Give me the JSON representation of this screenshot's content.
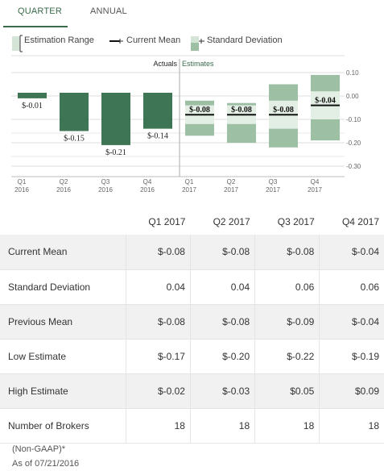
{
  "tabs": {
    "quarter": "QUARTER",
    "annual": "ANNUAL"
  },
  "legend": {
    "range": "Estimation Range",
    "mean": "Current Mean",
    "stddev": "Standard Deviation"
  },
  "colors": {
    "actual": "#3e7554",
    "estimate": "#9dc0a4",
    "accent": "#3a6b4a"
  },
  "chart_data": {
    "type": "bar",
    "section_labels": {
      "actuals": "Actuals",
      "estimates": "Estimates"
    },
    "categories": [
      "Q1\n2016",
      "Q2\n2016",
      "Q3\n2016",
      "Q4\n2016",
      "Q1\n2017",
      "Q2\n2017",
      "Q3\n2017",
      "Q4\n2017"
    ],
    "y_ticks": [
      "0.10",
      "0.00",
      "-0.10",
      "-0.20",
      "-0.30"
    ],
    "ylim": [
      -0.33,
      0.11
    ],
    "actuals": [
      {
        "label": "$-0.01",
        "value": -0.01
      },
      {
        "label": "$-0.15",
        "value": -0.15
      },
      {
        "label": "$-0.21",
        "value": -0.21
      },
      {
        "label": "$-0.14",
        "value": -0.14
      }
    ],
    "estimates": [
      {
        "label": "$-0.08",
        "mean": -0.08,
        "low": -0.17,
        "high": -0.02,
        "stddev": 0.04
      },
      {
        "label": "$-0.08",
        "mean": -0.08,
        "low": -0.2,
        "high": -0.03,
        "stddev": 0.04
      },
      {
        "label": "$-0.08",
        "mean": -0.08,
        "low": -0.22,
        "high": 0.05,
        "stddev": 0.06
      },
      {
        "label": "$-0.04",
        "mean": -0.04,
        "low": -0.19,
        "high": 0.09,
        "stddev": 0.06
      }
    ]
  },
  "table": {
    "columns": [
      "Q1 2017",
      "Q2 2017",
      "Q3 2017",
      "Q4 2017"
    ],
    "rows": [
      {
        "label": "Current Mean",
        "values": [
          "$-0.08",
          "$-0.08",
          "$-0.08",
          "$-0.04"
        ]
      },
      {
        "label": "Standard Deviation",
        "values": [
          "0.04",
          "0.04",
          "0.06",
          "0.06"
        ]
      },
      {
        "label": "Previous Mean",
        "values": [
          "$-0.08",
          "$-0.08",
          "$-0.09",
          "$-0.04"
        ]
      },
      {
        "label": "Low Estimate",
        "values": [
          "$-0.17",
          "$-0.20",
          "$-0.22",
          "$-0.19"
        ]
      },
      {
        "label": "High Estimate",
        "values": [
          "$-0.02",
          "$-0.03",
          "$0.05",
          "$0.09"
        ]
      },
      {
        "label": "Number of Brokers",
        "values": [
          "18",
          "18",
          "18",
          "18"
        ]
      }
    ]
  },
  "footer": {
    "note": "(Non-GAAP)*",
    "asof": "As of 07/21/2016"
  }
}
